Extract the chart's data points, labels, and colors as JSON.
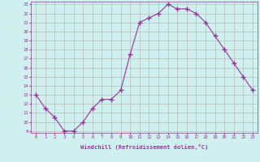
{
  "x": [
    0,
    1,
    2,
    3,
    4,
    5,
    6,
    7,
    8,
    9,
    10,
    11,
    12,
    13,
    14,
    15,
    16,
    17,
    18,
    19,
    20,
    21,
    22,
    23
  ],
  "y": [
    13,
    11.5,
    10.5,
    9,
    9,
    10,
    11.5,
    12.5,
    12.5,
    13.5,
    17.5,
    21,
    21.5,
    22,
    23,
    22.5,
    22.5,
    22,
    21,
    19.5,
    18,
    16.5,
    15,
    13.5
  ],
  "line_color": "#993399",
  "marker": "+",
  "marker_size": 4,
  "bg_color": "#d0f0f0",
  "grid_color": "#b0b0b0",
  "xlabel": "Windchill (Refroidissement éolien,°C)",
  "xlabel_color": "#993399",
  "tick_color": "#993399",
  "xlim": [
    -0.5,
    23.5
  ],
  "ylim": [
    9,
    23
  ],
  "yticks": [
    9,
    10,
    11,
    12,
    13,
    14,
    15,
    16,
    17,
    18,
    19,
    20,
    21,
    22,
    23
  ],
  "xticks": [
    0,
    1,
    2,
    3,
    4,
    5,
    6,
    7,
    8,
    9,
    10,
    11,
    12,
    13,
    14,
    15,
    16,
    17,
    18,
    19,
    20,
    21,
    22,
    23
  ]
}
